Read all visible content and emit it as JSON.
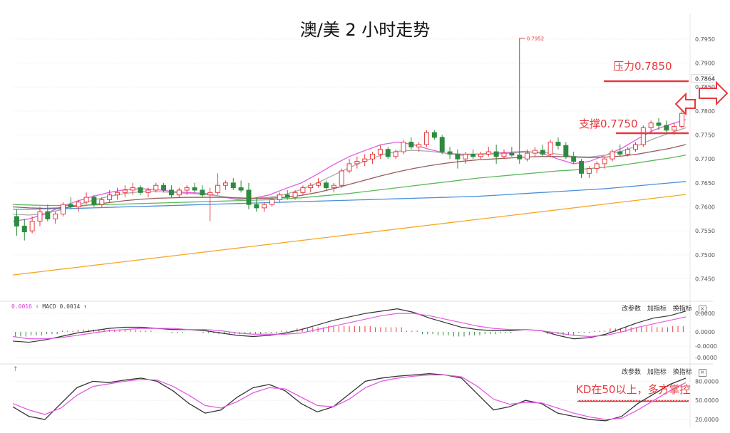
{
  "title": "澳/美 2 小时走势",
  "annotations": {
    "resistance": "压力0.7850",
    "support": "支撑0.7750",
    "kd_note": "KD在50以上，多方掌控",
    "peak": "0.7952"
  },
  "toolbar": {
    "params": "改参数",
    "add": "加指标",
    "switch": "换指标",
    "close": "×"
  },
  "macd_legend": {
    "first": "0.0016",
    "macd": "MACD 0.0014"
  },
  "kd_legend": "↑",
  "colors": {
    "up": "#e8383d",
    "down": "#2e8b3e",
    "ma_pink": "#e35be3",
    "ma_gray": "#a9a9a9",
    "ma_brown": "#9b5a5a",
    "ma_green": "#5cb85c",
    "ma_blue": "#4a90d9",
    "ma_orange": "#f5a623",
    "annotation": "#e8383d"
  },
  "chart_data": [
    {
      "type": "candlestick",
      "title": "澳/美 2 小时走势",
      "ylim": [
        0.743,
        0.7975
      ],
      "y_ticks": [
        "0.7950",
        "0.7900",
        "0.7850",
        "0.7800",
        "0.7750",
        "0.7700",
        "0.7650",
        "0.7600",
        "0.7550",
        "0.7500",
        "0.7450"
      ],
      "current_price": "0.7864",
      "ohlc": [
        [
          0.758,
          0.7595,
          0.754,
          0.756
        ],
        [
          0.756,
          0.7575,
          0.753,
          0.7548
        ],
        [
          0.755,
          0.758,
          0.7545,
          0.757
        ],
        [
          0.757,
          0.76,
          0.756,
          0.759
        ],
        [
          0.759,
          0.7605,
          0.757,
          0.7575
        ],
        [
          0.7575,
          0.759,
          0.7565,
          0.7585
        ],
        [
          0.7585,
          0.761,
          0.758,
          0.7605
        ],
        [
          0.7605,
          0.762,
          0.7595,
          0.76
        ],
        [
          0.76,
          0.7615,
          0.759,
          0.761
        ],
        [
          0.761,
          0.763,
          0.7605,
          0.762
        ],
        [
          0.762,
          0.7625,
          0.76,
          0.7605
        ],
        [
          0.7605,
          0.762,
          0.76,
          0.7615
        ],
        [
          0.7615,
          0.7635,
          0.761,
          0.7625
        ],
        [
          0.7625,
          0.764,
          0.7615,
          0.763
        ],
        [
          0.763,
          0.7645,
          0.762,
          0.7635
        ],
        [
          0.7635,
          0.765,
          0.7625,
          0.764
        ],
        [
          0.764,
          0.7645,
          0.7625,
          0.763
        ],
        [
          0.763,
          0.764,
          0.762,
          0.7635
        ],
        [
          0.7635,
          0.765,
          0.763,
          0.7645
        ],
        [
          0.7645,
          0.765,
          0.763,
          0.7635
        ],
        [
          0.7635,
          0.7645,
          0.762,
          0.7625
        ],
        [
          0.7625,
          0.764,
          0.762,
          0.7635
        ],
        [
          0.7635,
          0.7645,
          0.7625,
          0.764
        ],
        [
          0.764,
          0.765,
          0.763,
          0.7635
        ],
        [
          0.7635,
          0.7645,
          0.762,
          0.7625
        ],
        [
          0.7625,
          0.764,
          0.757,
          0.763
        ],
        [
          0.763,
          0.767,
          0.7625,
          0.7645
        ],
        [
          0.7645,
          0.7655,
          0.7635,
          0.765
        ],
        [
          0.765,
          0.766,
          0.7635,
          0.764
        ],
        [
          0.764,
          0.7655,
          0.763,
          0.7635
        ],
        [
          0.7635,
          0.765,
          0.7595,
          0.7605
        ],
        [
          0.7605,
          0.762,
          0.759,
          0.7598
        ],
        [
          0.7598,
          0.761,
          0.759,
          0.7605
        ],
        [
          0.7605,
          0.762,
          0.76,
          0.7615
        ],
        [
          0.7615,
          0.763,
          0.761,
          0.7625
        ],
        [
          0.7625,
          0.7635,
          0.7615,
          0.762
        ],
        [
          0.762,
          0.7635,
          0.7615,
          0.763
        ],
        [
          0.763,
          0.7645,
          0.7625,
          0.764
        ],
        [
          0.764,
          0.765,
          0.763,
          0.7645
        ],
        [
          0.7645,
          0.766,
          0.764,
          0.765
        ],
        [
          0.765,
          0.7655,
          0.7635,
          0.764
        ],
        [
          0.764,
          0.765,
          0.763,
          0.7645
        ],
        [
          0.7645,
          0.768,
          0.764,
          0.7675
        ],
        [
          0.7675,
          0.77,
          0.767,
          0.769
        ],
        [
          0.769,
          0.7705,
          0.768,
          0.7695
        ],
        [
          0.7695,
          0.771,
          0.7685,
          0.77
        ],
        [
          0.77,
          0.7715,
          0.769,
          0.771
        ],
        [
          0.771,
          0.773,
          0.77,
          0.772
        ],
        [
          0.772,
          0.7725,
          0.77,
          0.7705
        ],
        [
          0.7705,
          0.772,
          0.77,
          0.7715
        ],
        [
          0.7715,
          0.774,
          0.771,
          0.7735
        ],
        [
          0.7735,
          0.7745,
          0.772,
          0.7725
        ],
        [
          0.7725,
          0.7735,
          0.7715,
          0.773
        ],
        [
          0.773,
          0.776,
          0.7725,
          0.7755
        ],
        [
          0.7755,
          0.776,
          0.774,
          0.7745
        ],
        [
          0.7745,
          0.775,
          0.771,
          0.7715
        ],
        [
          0.7715,
          0.7725,
          0.77,
          0.771
        ],
        [
          0.771,
          0.772,
          0.768,
          0.77
        ],
        [
          0.77,
          0.7715,
          0.769,
          0.771
        ],
        [
          0.771,
          0.772,
          0.77,
          0.7705
        ],
        [
          0.7705,
          0.7715,
          0.77,
          0.771
        ],
        [
          0.771,
          0.7725,
          0.7705,
          0.7715
        ],
        [
          0.7715,
          0.773,
          0.769,
          0.7705
        ],
        [
          0.7705,
          0.772,
          0.77,
          0.7712
        ],
        [
          0.7712,
          0.7725,
          0.7705,
          0.7708
        ],
        [
          0.7708,
          0.7952,
          0.769,
          0.77
        ],
        [
          0.77,
          0.772,
          0.7695,
          0.7712
        ],
        [
          0.7712,
          0.7725,
          0.7705,
          0.7718
        ],
        [
          0.7718,
          0.773,
          0.7705,
          0.771
        ],
        [
          0.771,
          0.774,
          0.7705,
          0.7735
        ],
        [
          0.7735,
          0.7745,
          0.772,
          0.7728
        ],
        [
          0.7728,
          0.7735,
          0.77,
          0.7705
        ],
        [
          0.7705,
          0.7715,
          0.769,
          0.7695
        ],
        [
          0.7695,
          0.77,
          0.766,
          0.767
        ],
        [
          0.767,
          0.7685,
          0.766,
          0.768
        ],
        [
          0.768,
          0.7695,
          0.767,
          0.769
        ],
        [
          0.769,
          0.7705,
          0.768,
          0.77
        ],
        [
          0.77,
          0.772,
          0.7695,
          0.7715
        ],
        [
          0.7715,
          0.773,
          0.7705,
          0.771
        ],
        [
          0.771,
          0.7725,
          0.7705,
          0.772
        ],
        [
          0.772,
          0.7735,
          0.7715,
          0.773
        ],
        [
          0.773,
          0.777,
          0.7725,
          0.7765
        ],
        [
          0.7765,
          0.778,
          0.7755,
          0.7775
        ],
        [
          0.7775,
          0.7785,
          0.776,
          0.777
        ],
        [
          0.777,
          0.778,
          0.7755,
          0.776
        ],
        [
          0.776,
          0.7775,
          0.775,
          0.7768
        ],
        [
          0.7768,
          0.78,
          0.7765,
          0.7795
        ]
      ],
      "ma_series": [
        {
          "color_key": "ma_pink",
          "values": [
            0.757,
            0.7575,
            0.7585,
            0.76,
            0.7612,
            0.7622,
            0.763,
            0.7636,
            0.7638,
            0.7636,
            0.7632,
            0.763,
            0.7628,
            0.7622,
            0.7615,
            0.7618,
            0.7625,
            0.7638,
            0.765,
            0.7668,
            0.7688,
            0.7705,
            0.7718,
            0.773,
            0.7735,
            0.773,
            0.772,
            0.7712,
            0.7708,
            0.771,
            0.7712,
            0.7714,
            0.7716,
            0.7712,
            0.77,
            0.769,
            0.7695,
            0.7708,
            0.7722,
            0.7742,
            0.776,
            0.7772,
            0.7782
          ]
        },
        {
          "color_key": "ma_gray",
          "values": [
            0.7585,
            0.7583,
            0.7586,
            0.7594,
            0.7604,
            0.7614,
            0.7622,
            0.7628,
            0.7632,
            0.7632,
            0.763,
            0.7628,
            0.7626,
            0.7622,
            0.7618,
            0.7618,
            0.762,
            0.7626,
            0.7636,
            0.765,
            0.7666,
            0.7682,
            0.7696,
            0.7708,
            0.7716,
            0.7718,
            0.7716,
            0.7712,
            0.771,
            0.771,
            0.771,
            0.7712,
            0.7714,
            0.7714,
            0.771,
            0.7705,
            0.7704,
            0.7708,
            0.7716,
            0.7728,
            0.7742,
            0.7754,
            0.7765
          ]
        },
        {
          "color_key": "ma_brown",
          "values": [
            0.76,
            0.7598,
            0.7597,
            0.7598,
            0.7601,
            0.7605,
            0.7609,
            0.7613,
            0.7616,
            0.7618,
            0.7619,
            0.762,
            0.762,
            0.762,
            0.7619,
            0.7618,
            0.7618,
            0.762,
            0.7624,
            0.763,
            0.7638,
            0.7647,
            0.7656,
            0.7665,
            0.7673,
            0.768,
            0.7686,
            0.7691,
            0.7695,
            0.7698,
            0.77,
            0.7702,
            0.7704,
            0.7705,
            0.7705,
            0.7704,
            0.7703,
            0.7704,
            0.7706,
            0.771,
            0.7716,
            0.7722,
            0.773
          ]
        },
        {
          "color_key": "ma_green",
          "values": [
            0.7605,
            0.7604,
            0.7603,
            0.7603,
            0.7603,
            0.7604,
            0.7605,
            0.7606,
            0.7607,
            0.7608,
            0.7609,
            0.761,
            0.7611,
            0.7612,
            0.7613,
            0.7614,
            0.7615,
            0.7617,
            0.7619,
            0.7622,
            0.7625,
            0.7628,
            0.7632,
            0.7636,
            0.764,
            0.7644,
            0.7648,
            0.7652,
            0.7656,
            0.766,
            0.7663,
            0.7666,
            0.7669,
            0.7672,
            0.7675,
            0.7677,
            0.768,
            0.7683,
            0.7687,
            0.7692,
            0.7697,
            0.7702,
            0.7708
          ]
        },
        {
          "color_key": "ma_blue",
          "values": [
            0.7595,
            0.7595,
            0.7596,
            0.7596,
            0.7597,
            0.7598,
            0.7599,
            0.76,
            0.7601,
            0.7602,
            0.7603,
            0.7604,
            0.7605,
            0.7606,
            0.7607,
            0.7608,
            0.7609,
            0.761,
            0.7611,
            0.7612,
            0.7613,
            0.7614,
            0.7615,
            0.7616,
            0.7617,
            0.7618,
            0.7619,
            0.762,
            0.7621,
            0.7622,
            0.7624,
            0.7626,
            0.7628,
            0.763,
            0.7632,
            0.7634,
            0.7636,
            0.7638,
            0.7641,
            0.7644,
            0.7647,
            0.765,
            0.7653
          ]
        },
        {
          "color_key": "ma_orange",
          "values": [
            0.7458,
            0.7462,
            0.7466,
            0.747,
            0.7474,
            0.7478,
            0.7482,
            0.7486,
            0.749,
            0.7494,
            0.7498,
            0.7502,
            0.7506,
            0.751,
            0.7514,
            0.7518,
            0.7522,
            0.7526,
            0.753,
            0.7534,
            0.7538,
            0.7542,
            0.7546,
            0.755,
            0.7554,
            0.7558,
            0.7562,
            0.7566,
            0.757,
            0.7574,
            0.7578,
            0.7582,
            0.7586,
            0.759,
            0.7594,
            0.7598,
            0.7602,
            0.7606,
            0.761,
            0.7614,
            0.7618,
            0.7622,
            0.7626
          ]
        }
      ],
      "levels": {
        "resistance": 0.785,
        "support": 0.775
      }
    },
    {
      "type": "macd",
      "y_ticks": [
        "0.0000",
        "0.0000",
        "-0.0000",
        "-0.0000"
      ],
      "dif": [
        -0.0008,
        -0.0009,
        -0.0007,
        -0.0004,
        -0.0001,
        0.0001,
        0.0003,
        0.0004,
        0.0004,
        0.0003,
        0.0002,
        0.0002,
        0.0001,
        -0.0001,
        -0.0003,
        -0.0004,
        -0.0003,
        -0.0001,
        0.0002,
        0.0006,
        0.001,
        0.0013,
        0.0016,
        0.0018,
        0.002,
        0.0017,
        0.0012,
        0.0008,
        0.0004,
        0.0002,
        0.0001,
        0.0001,
        0.0002,
        0.0001,
        -0.0003,
        -0.0006,
        -0.0005,
        -0.0002,
        0.0003,
        0.0008,
        0.0012,
        0.0014,
        0.0018
      ],
      "dea": [
        -0.0004,
        -0.0006,
        -0.0006,
        -0.0005,
        -0.0003,
        -0.0001,
        0.0001,
        0.0002,
        0.0003,
        0.0003,
        0.0003,
        0.0002,
        0.0002,
        0.0001,
        -0.0001,
        -0.0002,
        -0.0002,
        -0.0002,
        -0.0001,
        0.0002,
        0.0005,
        0.0008,
        0.0011,
        0.0014,
        0.0016,
        0.0016,
        0.0014,
        0.0011,
        0.0008,
        0.0005,
        0.0003,
        0.0002,
        0.0002,
        0.0001,
        -0.0001,
        -0.0003,
        -0.0004,
        -0.0003,
        0.0,
        0.0004,
        0.0007,
        0.001,
        0.0013
      ],
      "hist": [
        -0.0004,
        -0.0003,
        -0.0002,
        0.0001,
        0.0002,
        0.0002,
        0.0002,
        0.0002,
        0.0001,
        0.0,
        -0.0001,
        0.0,
        -0.0001,
        -0.0002,
        -0.0002,
        -0.0002,
        -0.0001,
        0.0001,
        0.0003,
        0.0004,
        0.0005,
        0.0005,
        0.0005,
        0.0004,
        0.0004,
        0.0001,
        -0.0002,
        -0.0003,
        -0.0004,
        -0.0003,
        -0.0002,
        -0.0001,
        0.0,
        0.0,
        -0.0002,
        -0.0003,
        -0.0001,
        0.0001,
        0.0003,
        0.0004,
        0.0005,
        0.0004,
        0.0005
      ]
    },
    {
      "type": "kd",
      "y_ticks": [
        "80.0000",
        "50.0000",
        "20.0000"
      ],
      "k": [
        40,
        25,
        20,
        45,
        70,
        80,
        78,
        82,
        85,
        80,
        65,
        45,
        30,
        35,
        55,
        70,
        75,
        65,
        45,
        32,
        40,
        60,
        80,
        85,
        88,
        90,
        92,
        90,
        85,
        60,
        35,
        40,
        50,
        45,
        30,
        25,
        20,
        18,
        25,
        45,
        60,
        75,
        85
      ],
      "d": [
        45,
        35,
        28,
        38,
        58,
        72,
        76,
        80,
        83,
        82,
        72,
        58,
        42,
        38,
        48,
        62,
        70,
        68,
        55,
        42,
        40,
        52,
        70,
        80,
        85,
        88,
        90,
        90,
        87,
        72,
        52,
        44,
        47,
        46,
        38,
        30,
        24,
        20,
        22,
        35,
        50,
        65,
        78
      ]
    }
  ]
}
